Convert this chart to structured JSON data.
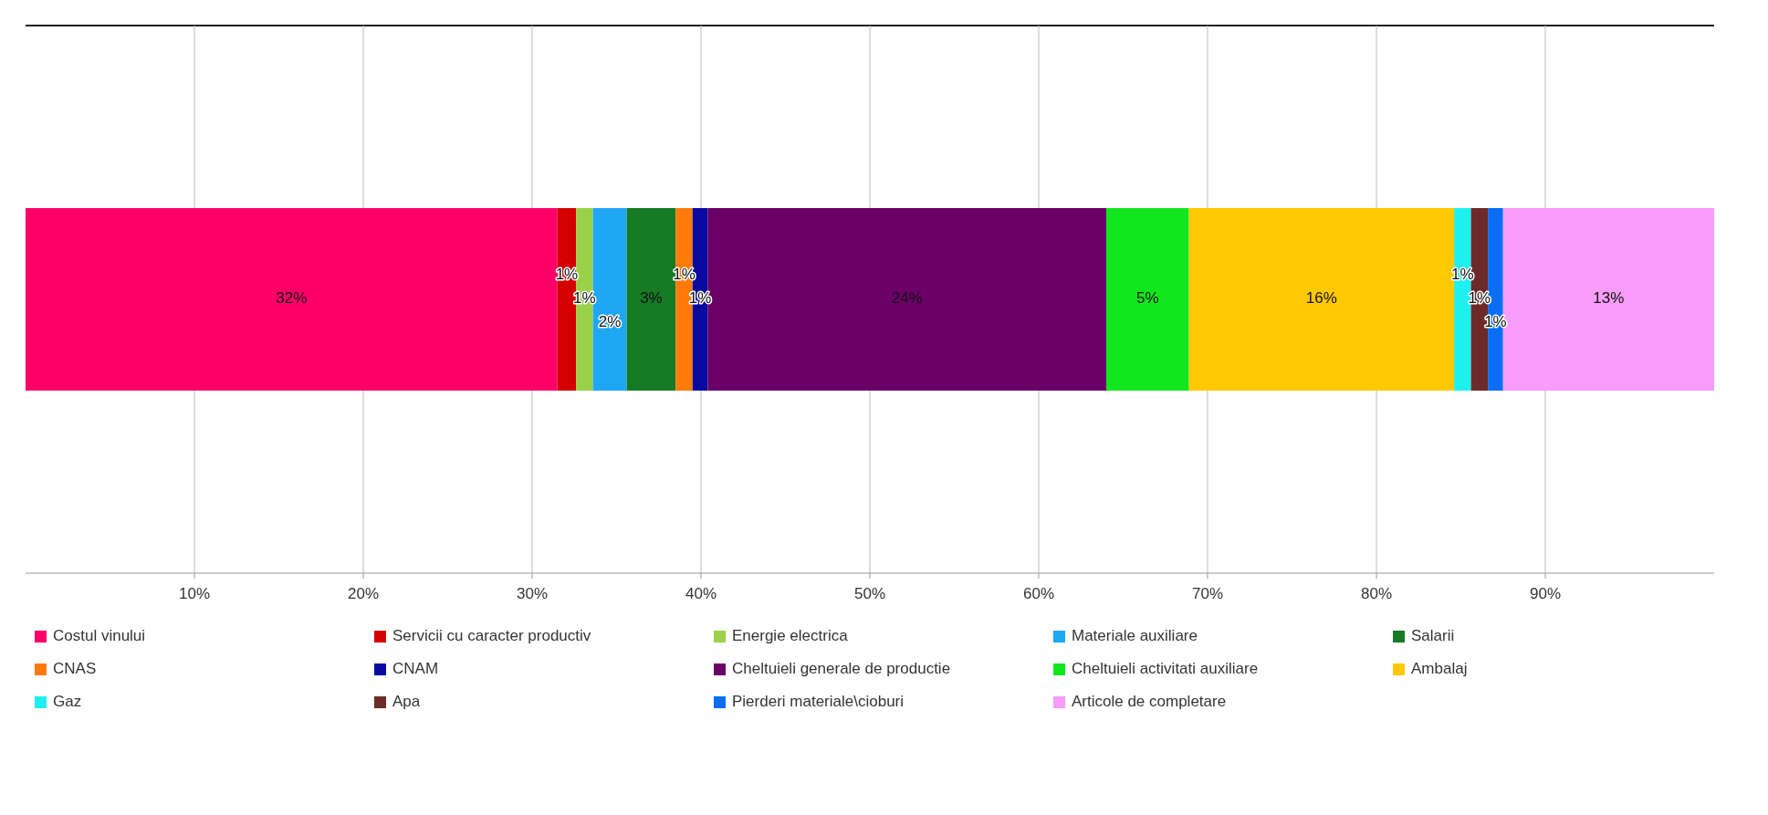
{
  "chart_data": {
    "type": "bar",
    "orientation": "horizontal",
    "stacked": true,
    "categories": [
      null
    ],
    "series": [
      {
        "name": "Costul vinului",
        "color": "#fe0068",
        "values": [
          31.5
        ],
        "value_labels": [
          "32%"
        ]
      },
      {
        "name": "Servicii cu caracter productiv",
        "color": "#d40000",
        "values": [
          1.1
        ],
        "value_labels": [
          "1%"
        ]
      },
      {
        "name": "Energie electrica",
        "color": "#9bd04a",
        "values": [
          1.0
        ],
        "value_labels": [
          "1%"
        ]
      },
      {
        "name": "Materiale auxiliare",
        "color": "#1ea7f5",
        "values": [
          2.0
        ],
        "value_labels": [
          "2%"
        ]
      },
      {
        "name": "Salarii",
        "color": "#177a25",
        "values": [
          2.9
        ],
        "value_labels": [
          "3%"
        ]
      },
      {
        "name": "CNAS",
        "color": "#ff7a0a",
        "values": [
          1.0
        ],
        "value_labels": [
          "1%"
        ]
      },
      {
        "name": "CNAM",
        "color": "#0a0aa0",
        "values": [
          0.9
        ],
        "value_labels": [
          "1%"
        ]
      },
      {
        "name": "Cheltuieli generale de productie",
        "color": "#6a0068",
        "values": [
          23.6
        ],
        "value_labels": [
          "24%"
        ]
      },
      {
        "name": "Cheltuieli activitati auxiliare",
        "color": "#12e61e",
        "values": [
          4.9
        ],
        "value_labels": [
          "5%"
        ]
      },
      {
        "name": "Ambalaj",
        "color": "#ffc800",
        "values": [
          15.7
        ],
        "value_labels": [
          "16%"
        ]
      },
      {
        "name": "Gaz",
        "color": "#1ef0f0",
        "values": [
          1.0
        ],
        "value_labels": [
          "1%"
        ]
      },
      {
        "name": "Apa",
        "color": "#6e2a28",
        "values": [
          1.0
        ],
        "value_labels": [
          "1%"
        ]
      },
      {
        "name": "Pierderi materiale\\cioburi",
        "color": "#0a6ef5",
        "values": [
          0.9
        ],
        "value_labels": [
          "1%"
        ]
      },
      {
        "name": "Articole de completare",
        "color": "#f79cf8",
        "values": [
          12.5
        ],
        "value_labels": [
          "13%"
        ]
      }
    ],
    "xlim": [
      0,
      100
    ],
    "xticks": [
      {
        "value": 10,
        "label": "10%"
      },
      {
        "value": 20,
        "label": "20%"
      },
      {
        "value": 30,
        "label": "30%"
      },
      {
        "value": 40,
        "label": "40%"
      },
      {
        "value": 50,
        "label": "50%"
      },
      {
        "value": 60,
        "label": "60%"
      },
      {
        "value": 70,
        "label": "70%"
      },
      {
        "value": 80,
        "label": "80%"
      },
      {
        "value": 90,
        "label": "90%"
      }
    ],
    "grid": "x",
    "legend": "bottom"
  }
}
